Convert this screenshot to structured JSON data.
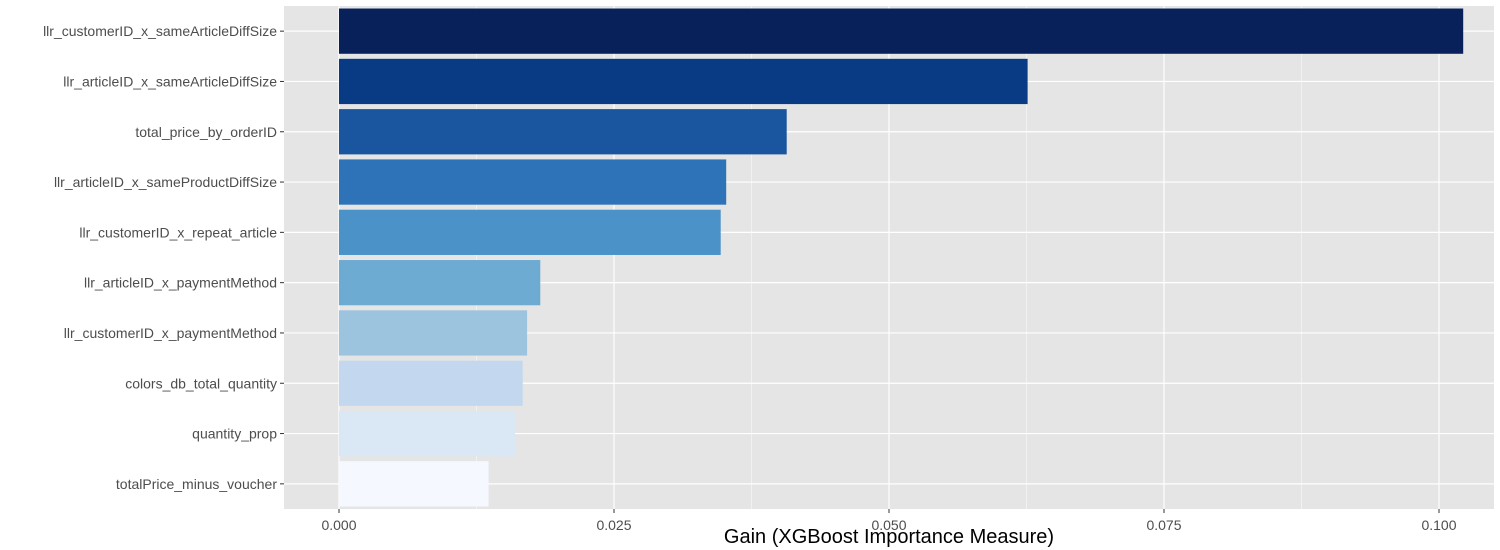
{
  "chart_data": {
    "type": "bar",
    "orientation": "horizontal",
    "title": "",
    "xlabel": "Gain (XGBoost Importance Measure)",
    "ylabel": "",
    "xlim": [
      -0.005,
      0.105
    ],
    "x_ticks": [
      0.0,
      0.025,
      0.05,
      0.075,
      0.1
    ],
    "x_tick_labels": [
      "0.000",
      "0.025",
      "0.050",
      "0.075",
      "0.100"
    ],
    "grid": true,
    "legend": "none",
    "categories": [
      "llr_customerID_x_sameArticleDiffSize",
      "llr_articleID_x_sameArticleDiffSize",
      "total_price_by_orderID",
      "llr_articleID_x_sameProductDiffSize",
      "llr_customerID_x_repeat_article",
      "llr_articleID_x_paymentMethod",
      "llr_customerID_x_paymentMethod",
      "colors_db_total_quantity",
      "quantity_prop",
      "totalPrice_minus_voucher"
    ],
    "values": [
      0.1022,
      0.0626,
      0.0407,
      0.0352,
      0.0347,
      0.0183,
      0.0171,
      0.0167,
      0.016,
      0.0136
    ],
    "colors": [
      "#08215b",
      "#093a84",
      "#1a55a0",
      "#2e72b7",
      "#4b92c9",
      "#6eabd3",
      "#9dc4df",
      "#c3d8ee",
      "#dae7f5",
      "#f5f9ff"
    ],
    "panel_background": "#e5e5e5",
    "grid_color": "#ffffff"
  }
}
